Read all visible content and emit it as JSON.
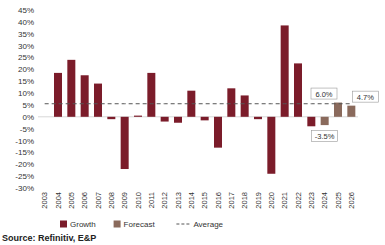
{
  "chart_data": {
    "type": "bar",
    "categories": [
      "2003",
      "2004",
      "2005",
      "2006",
      "2007",
      "2008",
      "2009",
      "2010",
      "2011",
      "2012",
      "2013",
      "2014",
      "2015",
      "2016",
      "2017",
      "2018",
      "2019",
      "2020",
      "2021",
      "2022",
      "2023",
      "2024",
      "2025",
      "2026"
    ],
    "series": [
      {
        "name": "Growth",
        "type": "bar",
        "color": "#7b1c2a",
        "values": [
          null,
          18.5,
          24,
          17.5,
          14,
          -1,
          -22,
          0.5,
          18.5,
          -2,
          -2.5,
          11,
          -1.5,
          -13,
          12,
          9,
          -1,
          -24,
          38.5,
          22.5,
          -4,
          null,
          null,
          null
        ]
      },
      {
        "name": "Forecast",
        "type": "bar",
        "color": "#8a6a5c",
        "data_labels": true,
        "values": [
          null,
          null,
          null,
          null,
          null,
          null,
          null,
          null,
          null,
          null,
          null,
          null,
          null,
          null,
          null,
          null,
          null,
          null,
          null,
          null,
          null,
          -3.5,
          6.0,
          4.7
        ],
        "value_labels": [
          null,
          null,
          null,
          null,
          null,
          null,
          null,
          null,
          null,
          null,
          null,
          null,
          null,
          null,
          null,
          null,
          null,
          null,
          null,
          null,
          null,
          "-3.5%",
          "6.0%",
          "4.7%"
        ]
      },
      {
        "name": "Average",
        "type": "line",
        "line_style": "dashed",
        "color": "#555555",
        "values": [
          5.5,
          5.5,
          5.5,
          5.5,
          5.5,
          5.5,
          5.5,
          5.5,
          5.5,
          5.5,
          5.5,
          5.5,
          5.5,
          5.5,
          5.5,
          5.5,
          5.5,
          5.5,
          5.5,
          5.5,
          5.5,
          5.5,
          5.5,
          5.5
        ]
      }
    ],
    "ylim": [
      -30,
      45
    ],
    "yticks": [
      {
        "value": 45,
        "label": "45%"
      },
      {
        "value": 40,
        "label": "40%"
      },
      {
        "value": 35,
        "label": "35%"
      },
      {
        "value": 30,
        "label": "30%"
      },
      {
        "value": 25,
        "label": "25%"
      },
      {
        "value": 20,
        "label": "20%"
      },
      {
        "value": 15,
        "label": "15%"
      },
      {
        "value": 10,
        "label": "10%"
      },
      {
        "value": 5,
        "label": "5%"
      },
      {
        "value": 0,
        "label": "0%"
      },
      {
        "value": -5,
        "label": "-5%"
      },
      {
        "value": -10,
        "label": "-10%"
      },
      {
        "value": -15,
        "label": "-15%"
      },
      {
        "value": -20,
        "label": "-20%"
      },
      {
        "value": -25,
        "label": "-25%"
      },
      {
        "value": -30,
        "label": "-30%"
      }
    ],
    "grid": false,
    "legend": "bottom",
    "source": "Source: Refinitiv, E&P"
  }
}
